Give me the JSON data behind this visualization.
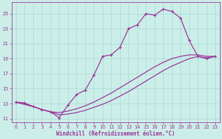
{
  "xlabel": "Windchill (Refroidissement éolien,°C)",
  "bg_color": "#cceee8",
  "grid_color": "#aaddd8",
  "line_color": "#993399",
  "xlim": [
    -0.5,
    23.5
  ],
  "ylim": [
    10.5,
    26.5
  ],
  "yticks": [
    11,
    13,
    15,
    17,
    19,
    21,
    23,
    25
  ],
  "xticks": [
    0,
    1,
    2,
    3,
    4,
    5,
    6,
    7,
    8,
    9,
    10,
    11,
    12,
    13,
    14,
    15,
    16,
    17,
    18,
    19,
    20,
    21,
    22,
    23
  ],
  "s1_x": [
    0,
    1,
    2,
    3,
    4,
    5,
    6,
    7,
    8,
    9,
    10,
    11,
    12,
    13,
    14,
    15,
    16,
    17,
    18,
    19,
    20,
    21,
    22,
    23
  ],
  "s1_y": [
    13.2,
    13.1,
    12.6,
    12.2,
    11.9,
    11.1,
    12.8,
    14.2,
    14.8,
    16.8,
    19.3,
    19.5,
    20.5,
    23.0,
    23.5,
    25.0,
    24.8,
    25.6,
    25.3,
    24.4,
    21.4,
    19.3,
    19.0,
    19.3
  ],
  "s2_x": [
    0,
    2,
    3,
    4,
    5,
    6,
    7,
    8,
    9,
    10,
    11,
    12,
    13,
    14,
    15,
    16,
    17,
    18,
    19,
    20,
    21,
    22,
    23
  ],
  "s2_y": [
    13.2,
    12.6,
    12.2,
    11.9,
    11.8,
    12.0,
    12.3,
    12.7,
    13.2,
    13.8,
    14.4,
    15.1,
    15.8,
    16.5,
    17.2,
    17.9,
    18.5,
    19.0,
    19.3,
    19.5,
    19.5,
    19.3,
    19.3
  ],
  "s3_x": [
    0,
    2,
    3,
    4,
    5,
    6,
    7,
    8,
    9,
    10,
    11,
    12,
    13,
    14,
    15,
    16,
    17,
    18,
    19,
    20,
    21,
    22,
    23
  ],
  "s3_y": [
    13.2,
    12.6,
    12.2,
    11.9,
    11.5,
    11.6,
    11.8,
    12.1,
    12.5,
    12.9,
    13.4,
    14.0,
    14.6,
    15.3,
    16.0,
    16.7,
    17.4,
    18.0,
    18.5,
    19.0,
    19.3,
    19.1,
    19.3
  ]
}
